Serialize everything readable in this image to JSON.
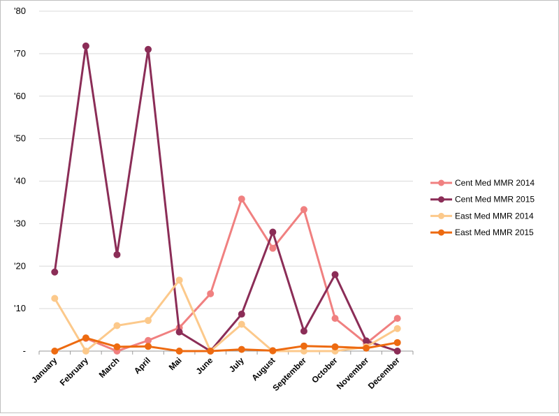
{
  "chart_data": {
    "type": "line",
    "title": "",
    "xlabel": "",
    "ylabel": "",
    "categories": [
      "January",
      "February",
      "March",
      "April",
      "Mai",
      "June",
      "July",
      "August",
      "September",
      "October",
      "November",
      "December"
    ],
    "y_ticks": [
      "-",
      "'10",
      "'20",
      "'30",
      "'40",
      "'50",
      "'60",
      "'70",
      "'80"
    ],
    "ylim": [
      0,
      80
    ],
    "grid": "horizontal",
    "legend_position": "right",
    "series": [
      {
        "name": "Cent Med MMR 2014",
        "color": "#f08080",
        "values": [
          null,
          3,
          0,
          2.5,
          5.5,
          13.5,
          35.8,
          24.2,
          33.3,
          7.7,
          1.8,
          7.7
        ]
      },
      {
        "name": "Cent Med MMR 2015",
        "color": "#8b2d57",
        "values": [
          18.6,
          71.8,
          22.7,
          71,
          4.5,
          0,
          8.7,
          28,
          4.7,
          18,
          2.4,
          0
        ]
      },
      {
        "name": "East Med MMR 2014",
        "color": "#fcc98b",
        "values": [
          12.4,
          0,
          6,
          7.2,
          16.7,
          0,
          6.3,
          0,
          0,
          0,
          1,
          5.3
        ]
      },
      {
        "name": "East Med MMR 2015",
        "color": "#ed6a10",
        "values": [
          0,
          3.1,
          1,
          1.1,
          0,
          0,
          0.4,
          0.1,
          1.2,
          1,
          0.7,
          2
        ]
      }
    ]
  }
}
